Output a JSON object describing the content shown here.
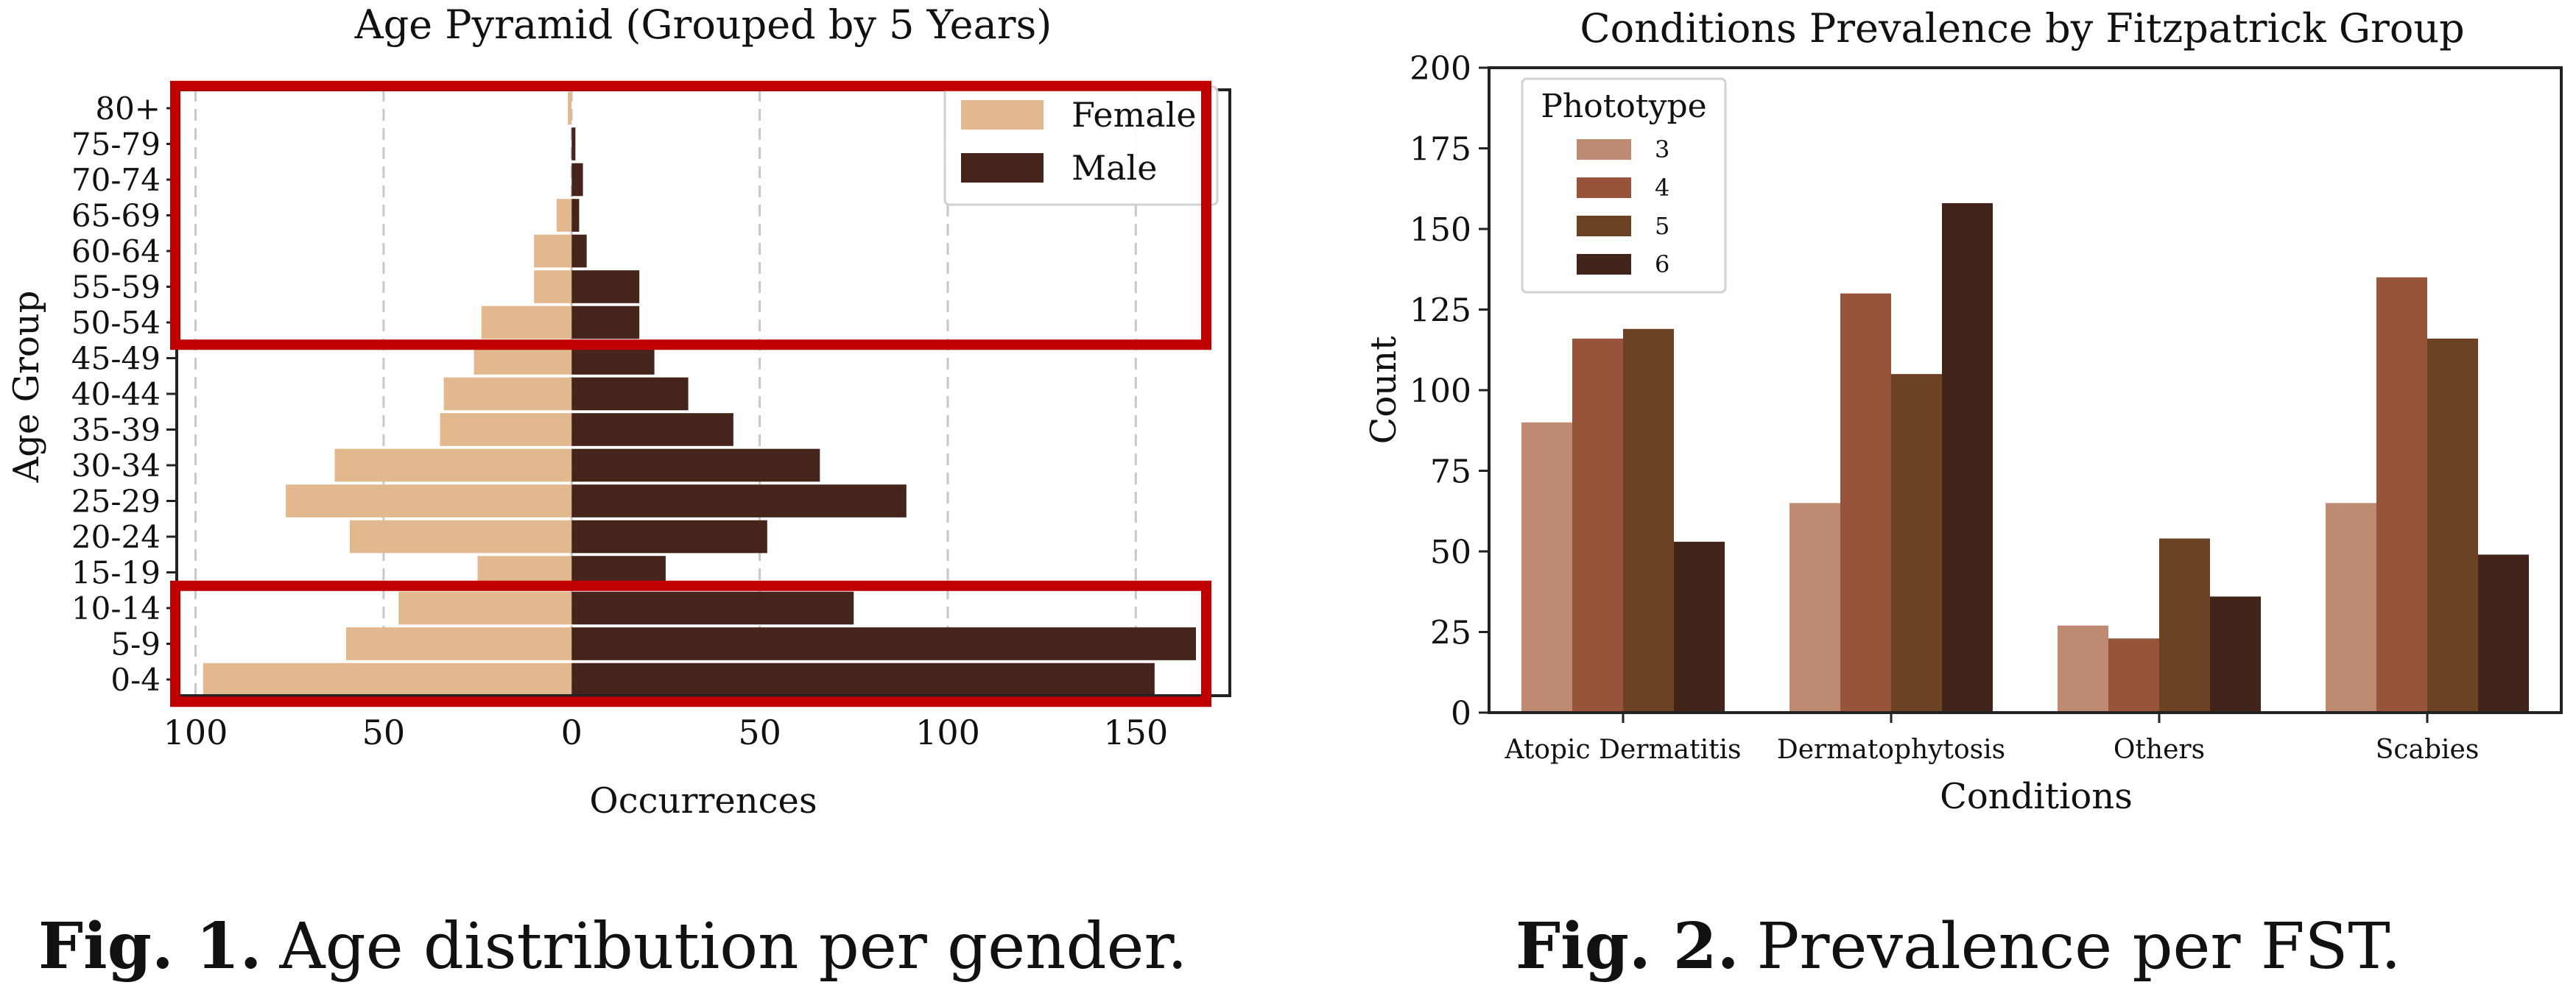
{
  "chart_data": [
    {
      "type": "bar",
      "orientation": "horizontal",
      "title": "Age Pyramid (Grouped by 5 Years)",
      "xlabel": "Occurrences",
      "ylabel": "Age Group",
      "categories": [
        "0-4",
        "5-9",
        "10-14",
        "15-19",
        "20-24",
        "25-29",
        "30-34",
        "35-39",
        "40-44",
        "45-49",
        "50-54",
        "55-59",
        "60-64",
        "65-69",
        "70-74",
        "75-79",
        "80+"
      ],
      "series": [
        {
          "name": "Female",
          "color": "#E2B98E",
          "values": [
            98,
            60,
            46,
            25,
            59,
            76,
            63,
            35,
            34,
            26,
            24,
            10,
            10,
            4,
            0,
            0,
            1
          ]
        },
        {
          "name": "Male",
          "color": "#45251B",
          "values": [
            155,
            166,
            75,
            25,
            52,
            89,
            66,
            43,
            31,
            22,
            18,
            18,
            4,
            2,
            3,
            1,
            0
          ]
        }
      ],
      "female_plotted_as_negative": true,
      "xlim": [
        -105,
        175
      ],
      "xticks": [
        -100,
        -50,
        0,
        50,
        100,
        150
      ],
      "xtick_labels": [
        "100",
        "50",
        "0",
        "50",
        "100",
        "150"
      ],
      "grid": "vertical dashed",
      "legend_position": "top-right",
      "highlight_boxes": [
        {
          "from": "50-54",
          "to": "80+",
          "color": "#C00000"
        },
        {
          "from": "0-4",
          "to": "10-14",
          "color": "#C00000"
        }
      ]
    },
    {
      "type": "bar",
      "title": "Conditions Prevalence by Fitzpatrick Group",
      "xlabel": "Conditions",
      "ylabel": "Count",
      "categories": [
        "Atopic Dermatitis",
        "Dermatophytosis",
        "Others",
        "Scabies"
      ],
      "series": [
        {
          "name": "3",
          "color": "#BE8A72",
          "values": [
            90,
            65,
            27,
            65
          ]
        },
        {
          "name": "4",
          "color": "#96543B",
          "values": [
            116,
            130,
            23,
            135
          ]
        },
        {
          "name": "5",
          "color": "#6B4324",
          "values": [
            119,
            105,
            54,
            116
          ]
        },
        {
          "name": "6",
          "color": "#42241B",
          "values": [
            53,
            158,
            36,
            49
          ]
        }
      ],
      "ylim": [
        0,
        200
      ],
      "yticks": [
        0,
        25,
        50,
        75,
        100,
        125,
        150,
        175,
        200
      ],
      "legend_title": "Phototype",
      "legend_position": "top-left",
      "grid": "off"
    }
  ],
  "captions": {
    "fig1_label": "Fig. 1.",
    "fig1_text": "Age distribution per gender.",
    "fig2_label": "Fig. 2.",
    "fig2_text": "Prevalence per FST."
  }
}
